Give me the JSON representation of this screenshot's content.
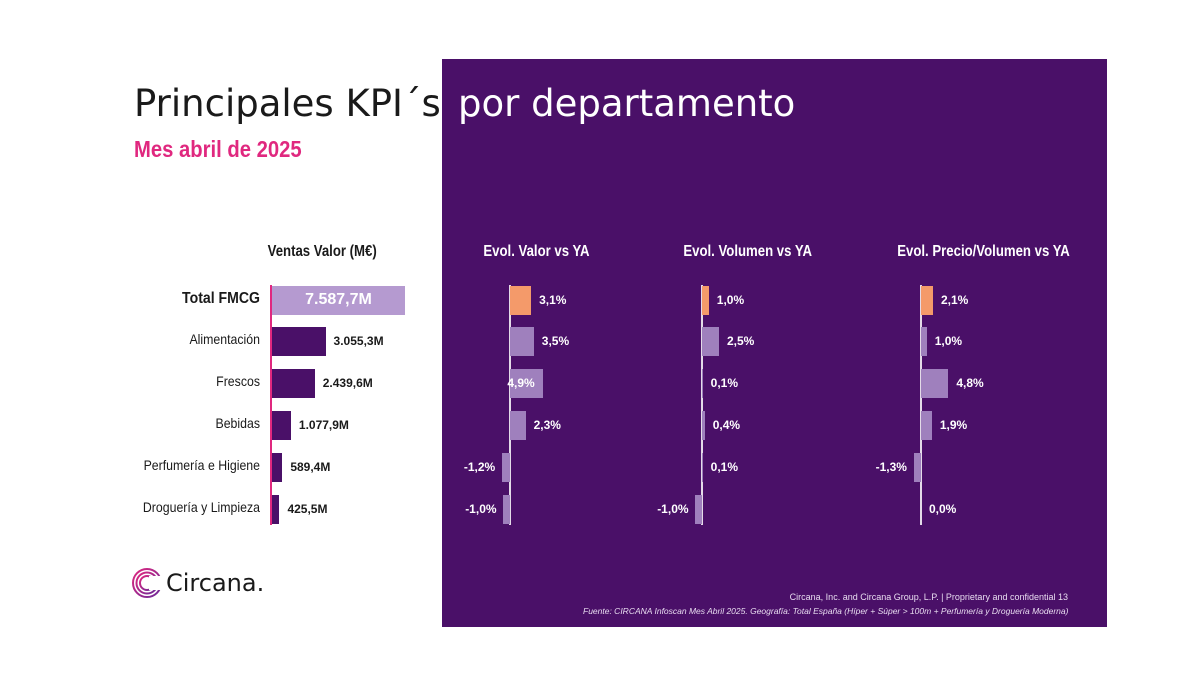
{
  "title_left": "Principales KPI´s",
  "title_right": "por departamento",
  "subtitle": "Mes abril de 2025",
  "brand": "Circana.",
  "footer_line1": "Circana, Inc. and Circana Group, L.P. | Proprietary and confidential    13",
  "footer_line2": "Fuente: CIRCANA Infoscan Mes Abril 2025. Geografía: Total España (Híper + Súper > 100m + Perfumería y Droguería Moderna)",
  "colors": {
    "panel": "#4a1068",
    "pink": "#e0287f",
    "dark_bar": "#4a1068",
    "highlight_bar": "#b59ad0",
    "light_bar": "#9f80bd",
    "total_delta_bar": "#f49a6a"
  },
  "chart_data": [
    {
      "type": "bar",
      "title": "Ventas Valor (M€)",
      "categories": [
        "Total FMCG",
        "Alimentación",
        "Frescos",
        "Bebidas",
        "Perfumería e Higiene",
        "Droguería y Limpieza"
      ],
      "values": [
        7587.7,
        3055.3,
        2439.6,
        1077.9,
        589.4,
        425.5
      ],
      "labels": [
        "7.587,7M",
        "3.055,3M",
        "2.439,6M",
        "1.077,9M",
        "589,4M",
        "425,5M"
      ],
      "orientation": "horizontal"
    },
    {
      "type": "bar",
      "title": "Evol. Valor vs YA",
      "categories": [
        "Total FMCG",
        "Alimentación",
        "Frescos",
        "Bebidas",
        "Perfumería e Higiene",
        "Droguería y Limpieza"
      ],
      "values": [
        3.1,
        3.5,
        4.9,
        2.3,
        -1.2,
        -1.0
      ],
      "labels": [
        "3,1%",
        "3,5%",
        "4,9%",
        "2,3%",
        "-1,2%",
        "-1,0%"
      ],
      "orientation": "horizontal"
    },
    {
      "type": "bar",
      "title": "Evol. Volumen vs YA",
      "categories": [
        "Total FMCG",
        "Alimentación",
        "Frescos",
        "Bebidas",
        "Perfumería e Higiene",
        "Droguería y Limpieza"
      ],
      "values": [
        1.0,
        2.5,
        0.1,
        0.4,
        0.1,
        -1.0
      ],
      "labels": [
        "1,0%",
        "2,5%",
        "0,1%",
        "0,4%",
        "0,1%",
        "-1,0%"
      ],
      "orientation": "horizontal"
    },
    {
      "type": "bar",
      "title": "Evol. Precio/Volumen vs YA",
      "categories": [
        "Total FMCG",
        "Alimentación",
        "Frescos",
        "Bebidas",
        "Perfumería e Higiene",
        "Droguería y Limpieza"
      ],
      "values": [
        2.1,
        1.0,
        4.8,
        1.9,
        -1.3,
        0.0
      ],
      "labels": [
        "2,1%",
        "1,0%",
        "4,8%",
        "1,9%",
        "-1,3%",
        "0,0%"
      ],
      "orientation": "horizontal"
    }
  ]
}
